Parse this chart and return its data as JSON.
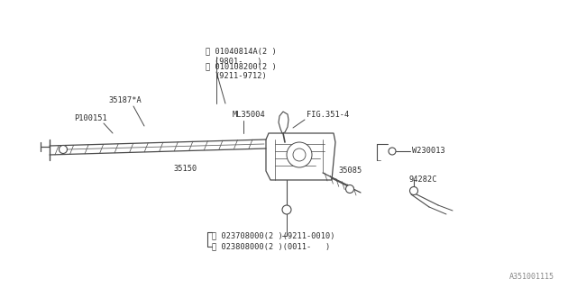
{
  "bg_color": "#ffffff",
  "line_color": "#4a4a4a",
  "text_color": "#2a2a2a",
  "fig_width": 6.4,
  "fig_height": 3.2,
  "dpi": 100,
  "watermark": "A351001115",
  "B1_main": "Ⓑ 01040814A(2 )",
  "B1_sub": "(9801-   )",
  "B2_main": "Ⓑ 010108200(2 )",
  "B2_sub": "(9211-9712)",
  "ML35004": "ML35004",
  "FIG351_4": "FIG.351-4",
  "P100151": "P100151",
  "label_35187A": "35187*A",
  "label_35150": "35150",
  "label_35085": "35085",
  "W230013": "W230013",
  "label_94282C": "94282C",
  "N1_text": "Ⓝ 023708000(2 )(9211-0010)",
  "N2_text": "Ⓝ 023808000(2 )(0011-   )"
}
